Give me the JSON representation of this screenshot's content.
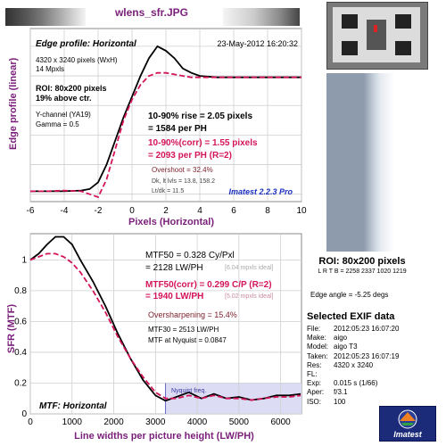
{
  "title": "wlens_sfr.JPG",
  "top_chart": {
    "panel_title": "Edge profile: Horizontal",
    "date": "23-May-2012 16:20:32",
    "info_lines": [
      "4320 x 3240 pixels (WxH)",
      "14 Mpxls"
    ],
    "roi_lines": [
      "ROI: 80x200 pixels",
      "19% above ctr."
    ],
    "channel_lines": [
      "Y-channel  (YA19)",
      "Gamma = 0.5"
    ],
    "rise_lines": [
      "10-90% rise = 2.05 pixels",
      "= 1584 per PH"
    ],
    "corr_lines": [
      "10-90%(corr) = 1.55 pixels",
      "= 2093 per PH  (R=2)"
    ],
    "overshoot": "Overshoot = 32.4%",
    "dk_lines": [
      "Dk, lt lvls = 13.8, 158.2",
      "Lt/dk = 11.5"
    ],
    "brand": "Imatest 2.2.3 Pro",
    "ylabel": "Edge profile (linear)",
    "xlabel": "Pixels (Horizontal)",
    "xticks": [
      "-6",
      "-4",
      "-2",
      "0",
      "2",
      "4",
      "6",
      "8",
      "10"
    ]
  },
  "bottom_chart": {
    "panel_title": "MTF: Horizontal",
    "mtf50_lines": [
      "MTF50 = 0.328 Cy/Pxl",
      "= 2128 LW/PH"
    ],
    "mtf50_ideal": "[6.04 mpxls ideal]",
    "mtf50corr_lines": [
      "MTF50(corr) = 0.299 C/P  (R=2)",
      "= 1940 LW/PH"
    ],
    "mtf50corr_ideal": "[5.02 mpxls ideal]",
    "oversharpening": "Oversharpening = 15.4%",
    "mtf30": "MTF30 = 2513 LW/PH",
    "mtf_nyquist": "MTF at Nyquist = 0.0847",
    "nyquist_label": "Nyquist freq.",
    "ylabel": "SFR (MTF)",
    "xlabel": "Line widths per picture height (LW/PH)",
    "xticks": [
      "0",
      "1000",
      "2000",
      "3000",
      "4000",
      "5000",
      "6000"
    ],
    "yticks": [
      "0",
      "0.2",
      "0.4",
      "0.6",
      "0.8",
      "1"
    ]
  },
  "roi_label": "ROI: 80x200 pixels",
  "roi_coords": "L R T B = 2258 2337  1020 1219",
  "edge_angle": "Edge angle = -5.25 degs",
  "exif_title": "Selected EXIF data",
  "exif": [
    {
      "k": "File:",
      "v": "2012:05:23 16:07:20"
    },
    {
      "k": "Make:",
      "v": "aigo"
    },
    {
      "k": "Model:",
      "v": "aigo T3"
    },
    {
      "k": "Taken:",
      "v": "2012:05:23 16:07:19"
    },
    {
      "k": "Res:",
      "v": "4320 x 3240"
    },
    {
      "k": "FL:",
      "v": ""
    },
    {
      "k": "Exp:",
      "v": "0.015 s  (1/66)"
    },
    {
      "k": "Aper:",
      "v": "f/3.1"
    },
    {
      "k": "ISO:",
      "v": "100"
    }
  ],
  "logo_text": "Imatest",
  "colors": {
    "black_curve": "#000000",
    "corr_curve": "#d4145a",
    "accent": "#7a1f7a",
    "brand_blue": "#1a2fbf",
    "nyquist_fill": "#dcdcf4"
  },
  "chart_data": [
    {
      "type": "line",
      "title": "Edge profile: Horizontal",
      "xlabel": "Pixels (Horizontal)",
      "ylabel": "Edge profile (linear)",
      "xlim": [
        -6,
        10
      ],
      "grid": true,
      "series": [
        {
          "x": [
            -6,
            -5,
            -4,
            -3,
            -2.5,
            -2,
            -1.5,
            -1,
            -0.5,
            0,
            0.5,
            1,
            1.5,
            2,
            2.5,
            3,
            3.5,
            4,
            5,
            6,
            7,
            8,
            9,
            10
          ],
          "values": [
            0.02,
            0.02,
            0.02,
            0.025,
            0.035,
            0.08,
            0.2,
            0.36,
            0.52,
            0.66,
            0.8,
            0.92,
            1.0,
            0.97,
            0.92,
            0.85,
            0.82,
            0.8,
            0.79,
            0.79,
            0.79,
            0.79,
            0.79,
            0.79
          ]
        },
        {
          "x": [
            -6,
            -5,
            -4,
            -3,
            -2.5,
            -2,
            -1.5,
            -1,
            -0.5,
            0,
            0.5,
            1,
            1.5,
            2,
            2.5,
            3,
            3.5,
            4,
            5,
            6,
            7,
            8,
            9,
            10
          ],
          "values": [
            0.02,
            0.02,
            0.025,
            0.02,
            0.0,
            -0.02,
            0.1,
            0.3,
            0.5,
            0.64,
            0.74,
            0.8,
            0.82,
            0.82,
            0.81,
            0.8,
            0.79,
            0.79,
            0.79,
            0.79,
            0.79,
            0.79,
            0.79,
            0.79
          ]
        }
      ]
    },
    {
      "type": "line",
      "title": "MTF: Horizontal",
      "xlabel": "Line widths per picture height (LW/PH)",
      "ylabel": "SFR (MTF)",
      "xlim": [
        0,
        6500
      ],
      "ylim": [
        0,
        1.15
      ],
      "grid": true,
      "series": [
        {
          "x": [
            0,
            200,
            400,
            600,
            800,
            1000,
            1200,
            1500,
            1800,
            2100,
            2400,
            2700,
            3000,
            3240,
            3500,
            3800,
            4100,
            4400,
            4700,
            5000,
            5300,
            5600,
            5900,
            6200,
            6480
          ],
          "values": [
            1.0,
            1.04,
            1.1,
            1.15,
            1.15,
            1.1,
            1.0,
            0.86,
            0.7,
            0.52,
            0.36,
            0.22,
            0.12,
            0.085,
            0.11,
            0.14,
            0.1,
            0.13,
            0.1,
            0.11,
            0.09,
            0.1,
            0.12,
            0.12,
            0.13
          ]
        },
        {
          "x": [
            0,
            200,
            400,
            600,
            800,
            1000,
            1200,
            1500,
            1800,
            2100,
            2400,
            2700,
            3000,
            3240,
            3500,
            3800,
            4100,
            4400,
            4700,
            5000,
            5300,
            5600,
            5900,
            6200,
            6480
          ],
          "values": [
            1.0,
            1.02,
            1.04,
            1.04,
            1.02,
            0.98,
            0.92,
            0.8,
            0.66,
            0.5,
            0.36,
            0.24,
            0.14,
            0.1,
            0.1,
            0.12,
            0.1,
            0.12,
            0.1,
            0.1,
            0.09,
            0.1,
            0.11,
            0.11,
            0.12
          ]
        }
      ]
    }
  ]
}
